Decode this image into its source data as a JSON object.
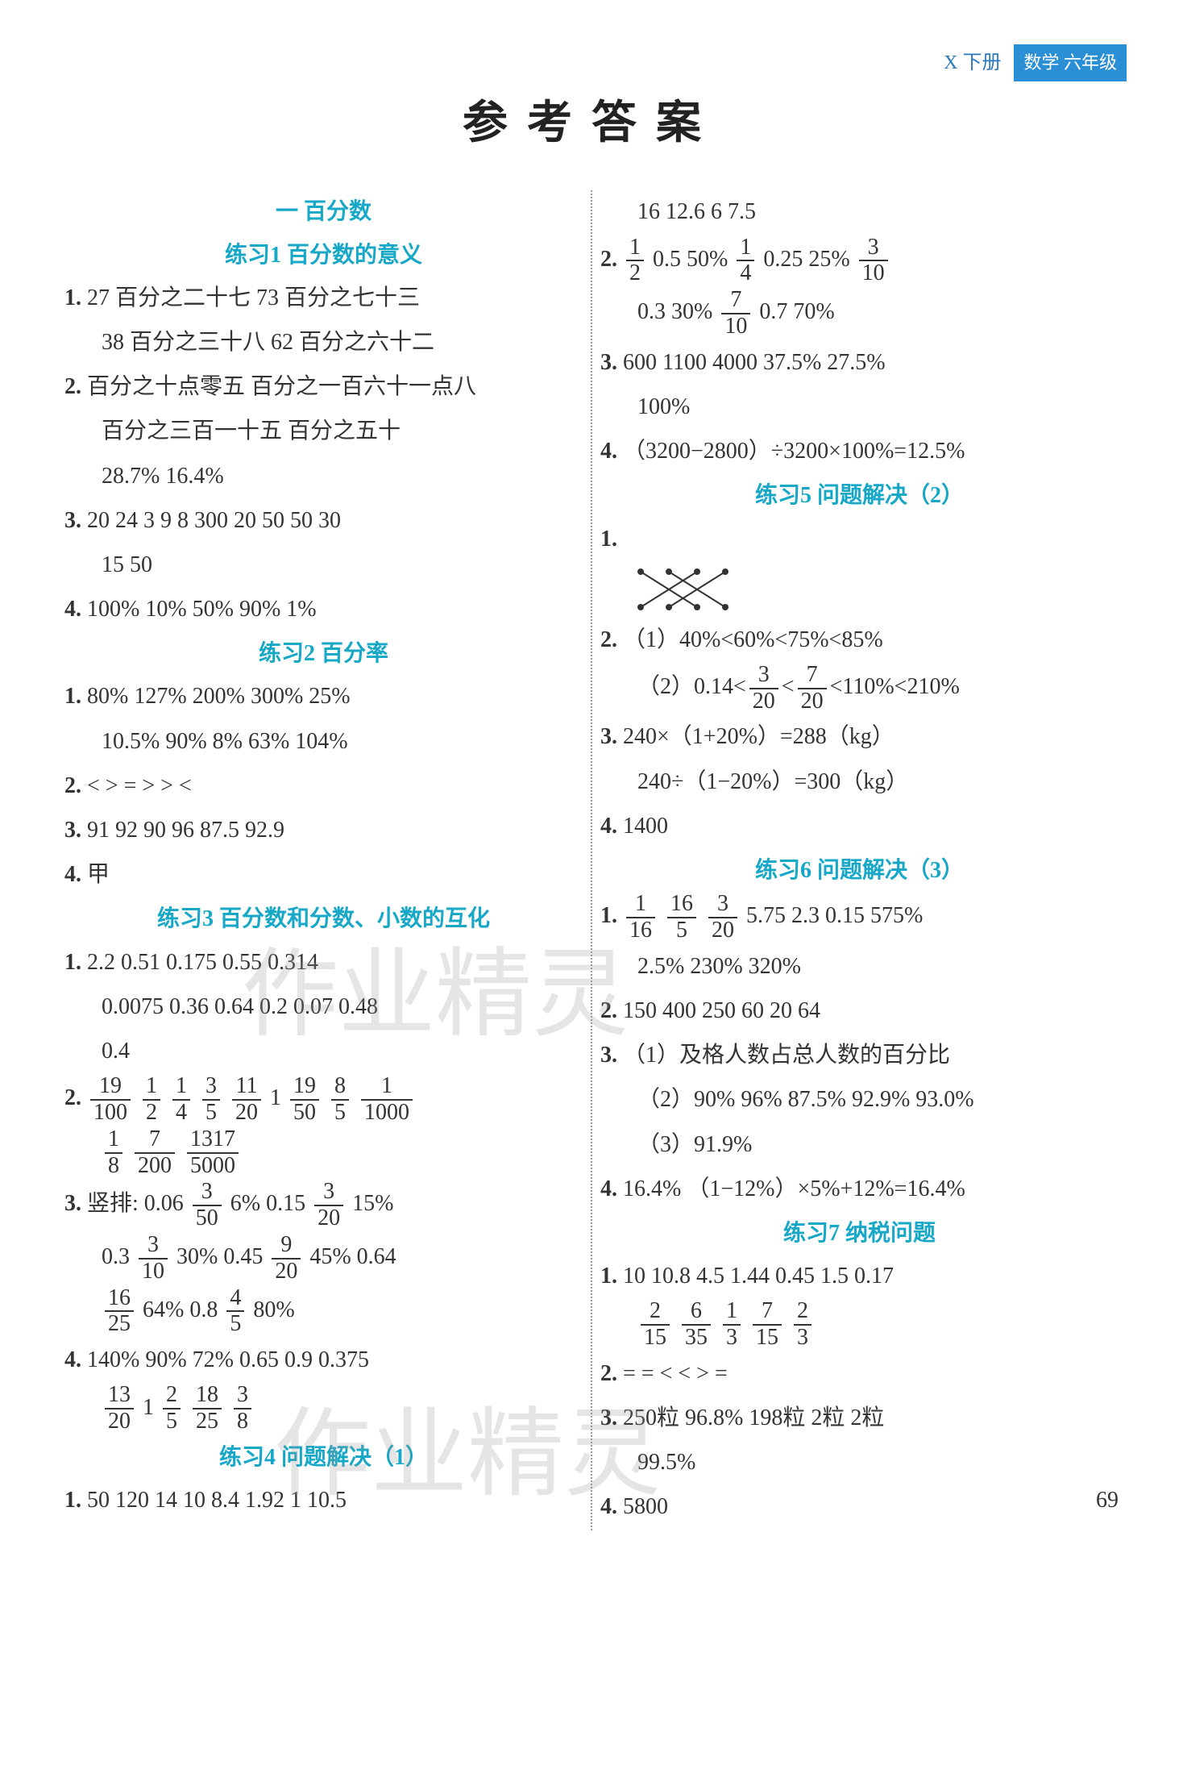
{
  "header": {
    "pre": "X 下册",
    "badge": "数学 六年级"
  },
  "titleMain": "参考答案",
  "watermark": "作业精灵",
  "pageNum": "69",
  "left": {
    "chapter": "一 百分数",
    "s1": {
      "head": "练习1 百分数的意义",
      "l1": "27 百分之二十七 73 百分之七十三",
      "l1b": "38 百分之三十八 62 百分之六十二",
      "l2": "百分之十点零五 百分之一百六十一点八",
      "l2b": "百分之三百一十五 百分之五十",
      "l2c": "28.7% 16.4%",
      "l3": "20 24 3 9 8 300 20 50 50 30",
      "l3b": "15 50",
      "l4": "100% 10% 50% 90% 1%"
    },
    "s2": {
      "head": "练习2 百分率",
      "l1": "80% 127% 200% 300% 25%",
      "l1b": "10.5% 90% 8% 63% 104%",
      "l2": "< > = > > <",
      "l3": "91 92 90 96 87.5 92.9",
      "l4": "甲"
    },
    "s3": {
      "head": "练习3 百分数和分数、小数的互化",
      "l1": "2.2 0.51 0.175 0.55 0.314",
      "l1b": "0.0075 0.36 0.64 0.2 0.07 0.48",
      "l1c": "0.4",
      "l2f": [
        [
          "19",
          "100"
        ],
        [
          "1",
          "2"
        ],
        [
          "1",
          "4"
        ],
        [
          "3",
          "5"
        ],
        [
          "11",
          "20"
        ],
        "1",
        [
          "19",
          "50"
        ],
        [
          "8",
          "5"
        ],
        [
          "1",
          "1000"
        ]
      ],
      "l2fb": [
        [
          "1",
          "8"
        ],
        [
          "7",
          "200"
        ],
        [
          "1317",
          "5000"
        ]
      ],
      "l3pre": "竖排: 0.06",
      "l3f1": [
        "3",
        "50"
      ],
      "l3a": "6% 0.15",
      "l3f2": [
        "3",
        "20"
      ],
      "l3b": "15%",
      "l3c": "0.3",
      "l3f3": [
        "3",
        "10"
      ],
      "l3d": "30% 0.45",
      "l3f4": [
        "9",
        "20"
      ],
      "l3e": "45% 0.64",
      "l3f5": [
        "16",
        "25"
      ],
      "l3g": "64% 0.8",
      "l3f6": [
        "4",
        "5"
      ],
      "l3h": "80%",
      "l4": "140% 90% 72% 0.65 0.9 0.375",
      "l4f": [
        [
          "13",
          "20"
        ],
        "1",
        [
          "2",
          "5"
        ],
        [
          "18",
          "25"
        ],
        [
          "3",
          "8"
        ]
      ]
    },
    "s4": {
      "head": "练习4 问题解决（1）",
      "l1": "50 120 14 10 8.4 1.92 1 10.5"
    }
  },
  "right": {
    "r0": "16 12.6 6 7.5",
    "r2f1": [
      "1",
      "2"
    ],
    "r2a": "0.5 50%",
    "r2f2": [
      "1",
      "4"
    ],
    "r2b": "0.25 25%",
    "r2f3": [
      "3",
      "10"
    ],
    "r2c": "0.3 30%",
    "r2f4": [
      "7",
      "10"
    ],
    "r2d": "0.7 70%",
    "r3": "600 1100 4000 37.5% 27.5%",
    "r3b": "100%",
    "r4": "（3200−2800）÷3200×100%=12.5%",
    "s5": {
      "head": "练习5 问题解决（2）",
      "l2a": "（1）40%<60%<75%<85%",
      "l2bpre": "（2）0.14<",
      "l2bf1": [
        "3",
        "20"
      ],
      "l2bmid": "<",
      "l2bf2": [
        "7",
        "20"
      ],
      "l2bpost": "<110%<210%",
      "l3a": "240×（1+20%）=288（kg）",
      "l3b": "240÷（1−20%）=300（kg）",
      "l4": "1400"
    },
    "s6": {
      "head": "练习6 问题解决（3）",
      "l1f1": [
        "1",
        "16"
      ],
      "l1f2": [
        "16",
        "5"
      ],
      "l1f3": [
        "3",
        "20"
      ],
      "l1a": "5.75 2.3 0.15 575%",
      "l1b": "2.5% 230% 320%",
      "l2": "150 400 250 60 20 64",
      "l3a": "（1）及格人数占总人数的百分比",
      "l3b": "（2）90% 96% 87.5% 92.9% 93.0%",
      "l3c": "（3）91.9%",
      "l4": "16.4% （1−12%）×5%+12%=16.4%"
    },
    "s7": {
      "head": "练习7 纳税问题",
      "l1": "10 10.8 4.5 1.44 0.45 1.5 0.17",
      "l1f": [
        [
          "2",
          "15"
        ],
        [
          "6",
          "35"
        ],
        [
          "1",
          "3"
        ],
        [
          "7",
          "15"
        ],
        [
          "2",
          "3"
        ]
      ],
      "l2": "= = < < > =",
      "l3": "250粒 96.8% 198粒 2粒 2粒",
      "l3b": "99.5%",
      "l4": "5800"
    }
  }
}
